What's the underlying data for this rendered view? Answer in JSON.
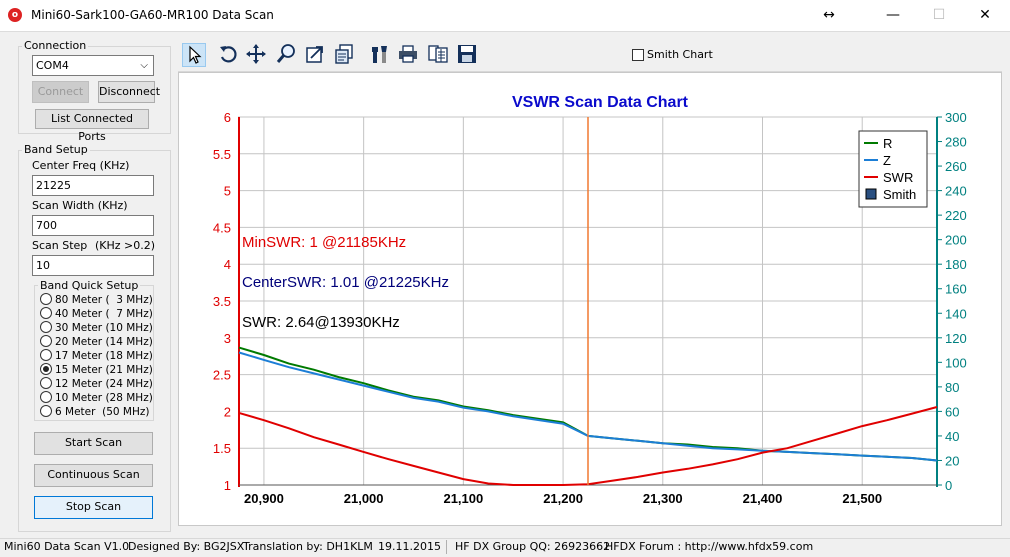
{
  "window": {
    "title": "Mini60-Sark100-GA60-MR100 Data Scan",
    "icon": "app-icon",
    "controls": {
      "resize": "↔",
      "minimize": "—",
      "maximize": "☐",
      "close": "✕"
    }
  },
  "connection": {
    "label": "Connection",
    "port_value": "COM4",
    "connect_label": "Connect",
    "disconnect_label": "Disconnect",
    "list_ports_label": "List Connected Ports"
  },
  "band_setup": {
    "label": "Band Setup",
    "center_freq_label": "Center Freq  (KHz)",
    "center_freq_value": "21225",
    "scan_width_label": "Scan Width   (KHz)",
    "scan_width_value": "700",
    "scan_step_label": "Scan Step",
    "scan_step_hint": "(KHz >0.2)",
    "scan_step_value": "10",
    "quick_setup_label": "Band Quick Setup",
    "bands": [
      {
        "label": "80 Meter (  3 MHz)",
        "selected": false
      },
      {
        "label": "40 Meter (  7 MHz)",
        "selected": false
      },
      {
        "label": "30 Meter (10 MHz)",
        "selected": false
      },
      {
        "label": "20 Meter (14 MHz)",
        "selected": false
      },
      {
        "label": "17 Meter (18 MHz)",
        "selected": false
      },
      {
        "label": "15 Meter (21 MHz)",
        "selected": true
      },
      {
        "label": "12 Meter (24 MHz)",
        "selected": false
      },
      {
        "label": "10 Meter (28 MHz)",
        "selected": false
      },
      {
        "label": "6 Meter  (50 MHz)",
        "selected": false
      }
    ]
  },
  "actions": {
    "start_label": "Start Scan",
    "continuous_label": "Continuous Scan",
    "stop_label": "Stop Scan"
  },
  "toolbar": {
    "icons": [
      "pointer-icon",
      "undo-icon",
      "pan-icon",
      "zoom-icon",
      "export-icon",
      "copy-data-icon",
      "settings-icon",
      "print-icon",
      "table-icon",
      "save-icon"
    ],
    "smith_chart_label": "Smith Chart",
    "smith_chart_checked": false
  },
  "chart_data": {
    "type": "line",
    "title": "VSWR Scan Data Chart",
    "xlim": [
      20875,
      21575
    ],
    "x_ticks": [
      "20,900",
      "21,000",
      "21,100",
      "21,200",
      "21,300",
      "21,400",
      "21,500"
    ],
    "y_left_lim": [
      1,
      6
    ],
    "y_left_ticks": [
      "1",
      "1.5",
      "2",
      "2.5",
      "3",
      "3.5",
      "4",
      "4.5",
      "5",
      "5.5",
      "6"
    ],
    "y_right_lim": [
      0,
      300
    ],
    "y_right_ticks": [
      "0",
      "20",
      "40",
      "60",
      "80",
      "100",
      "120",
      "140",
      "160",
      "180",
      "200",
      "220",
      "240",
      "260",
      "280",
      "300"
    ],
    "grid": true,
    "legend_position": "top-right",
    "legend": [
      {
        "name": "R",
        "color": "#007a00"
      },
      {
        "name": "Z",
        "color": "#1c7ed6"
      },
      {
        "name": "SWR",
        "color": "#e00000"
      },
      {
        "name": "Smith",
        "color": "#2a4f80"
      }
    ],
    "cursor_x": 21225,
    "annotations": [
      {
        "text": "MinSWR: 1 @21185KHz",
        "color": "#e00000"
      },
      {
        "text": "CenterSWR: 1.01 @21225KHz",
        "color": "#00007a"
      },
      {
        "text": "SWR: 2.64@13930KHz",
        "color": "#000000"
      }
    ],
    "series": [
      {
        "name": "R",
        "axis": "right",
        "color": "#007a00",
        "x": [
          20875,
          20900,
          20925,
          20950,
          20975,
          21000,
          21025,
          21050,
          21075,
          21100,
          21125,
          21150,
          21175,
          21200,
          21225,
          21250,
          21275,
          21300,
          21325,
          21350,
          21375,
          21400,
          21425,
          21450,
          21475,
          21500,
          21525,
          21550,
          21575
        ],
        "values": [
          112,
          106,
          99,
          94,
          88,
          83,
          77,
          72,
          69,
          64,
          61,
          57,
          54,
          51,
          40,
          38,
          36,
          34,
          33,
          31,
          30,
          28,
          27,
          26,
          25,
          24,
          23,
          22,
          20
        ]
      },
      {
        "name": "Z",
        "axis": "right",
        "color": "#1c7ed6",
        "x": [
          20875,
          20900,
          20925,
          20950,
          20975,
          21000,
          21025,
          21050,
          21075,
          21100,
          21125,
          21150,
          21175,
          21200,
          21225,
          21250,
          21275,
          21300,
          21325,
          21350,
          21375,
          21400,
          21425,
          21450,
          21475,
          21500,
          21525,
          21550,
          21575
        ],
        "values": [
          108,
          102,
          96,
          91,
          86,
          81,
          76,
          71,
          68,
          63,
          60,
          56,
          53,
          50,
          40,
          38,
          36,
          34,
          32,
          30,
          29,
          28,
          27,
          26,
          25,
          24,
          23,
          22,
          20
        ]
      },
      {
        "name": "SWR",
        "axis": "left",
        "color": "#e00000",
        "x": [
          20875,
          20900,
          20925,
          20950,
          20975,
          21000,
          21025,
          21050,
          21075,
          21100,
          21125,
          21150,
          21175,
          21185,
          21200,
          21225,
          21250,
          21275,
          21300,
          21325,
          21350,
          21375,
          21400,
          21425,
          21450,
          21475,
          21500,
          21525,
          21550,
          21575
        ],
        "values": [
          1.98,
          1.88,
          1.77,
          1.65,
          1.55,
          1.45,
          1.35,
          1.26,
          1.17,
          1.08,
          1.02,
          1.0,
          1.0,
          1.0,
          1.0,
          1.01,
          1.06,
          1.11,
          1.17,
          1.22,
          1.28,
          1.35,
          1.44,
          1.5,
          1.6,
          1.7,
          1.8,
          1.88,
          1.97,
          2.06
        ]
      }
    ]
  },
  "status": {
    "version": "Mini60 Data Scan V1.0",
    "designed": "Designed By: BG2JSX",
    "translation": "Translation by: DH1KLM",
    "date": "19.11.2015",
    "qq": "HF DX Group QQ: 26923662",
    "forum": "HFDX Forum :   http://www.hfdx59.com"
  }
}
